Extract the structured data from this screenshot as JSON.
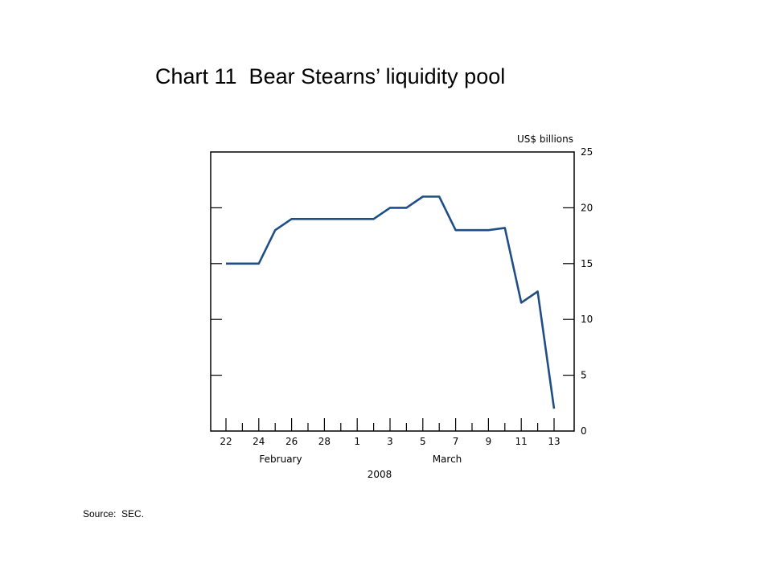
{
  "title": "Chart 11  Bear Stearns’ liquidity pool",
  "source": "Source:  SEC.",
  "chart_data": {
    "type": "line",
    "ylabel": "US$ billions",
    "ylim": [
      0,
      25
    ],
    "yticks": [
      0,
      5,
      10,
      15,
      20,
      25
    ],
    "grid": false,
    "x_tick_labels": [
      "22",
      "24",
      "26",
      "28",
      "1",
      "3",
      "5",
      "7",
      "9",
      "11",
      "13"
    ],
    "month_labels": [
      "February",
      "March"
    ],
    "year_label": "2008",
    "series": [
      {
        "color": "#1f4e87",
        "x": [
          "Feb 22",
          "Feb 23",
          "Feb 24",
          "Feb 25",
          "Feb 26",
          "Feb 27",
          "Feb 28",
          "Feb 29",
          "Mar 1",
          "Mar 2",
          "Mar 3",
          "Mar 4",
          "Mar 5",
          "Mar 6",
          "Mar 7",
          "Mar 8",
          "Mar 9",
          "Mar 10",
          "Mar 11",
          "Mar 12",
          "Mar 13"
        ],
        "values": [
          15,
          15,
          15,
          18,
          19,
          19,
          19,
          19,
          19,
          19,
          20,
          20,
          21,
          21,
          18,
          18,
          18,
          18.2,
          11.5,
          12.5,
          2
        ]
      }
    ]
  }
}
